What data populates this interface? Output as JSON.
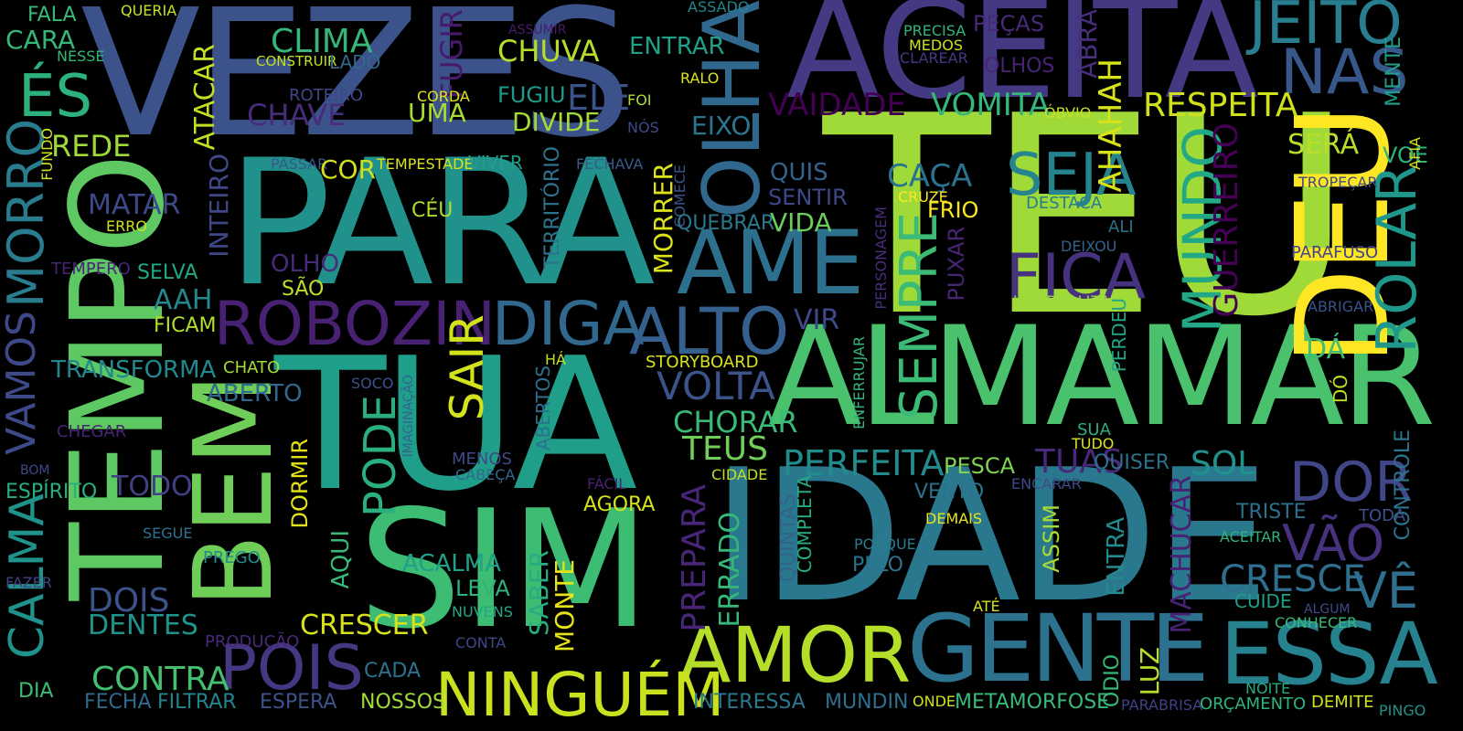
{
  "colors": {
    "background": "#000000"
  },
  "words": [
    {
      "id": "teu",
      "text": "TEU",
      "color": "#a0da39"
    },
    {
      "id": "vezes",
      "text": "VEZES",
      "color": "#3b528b"
    },
    {
      "id": "aceita",
      "text": "ACEITA",
      "color": "#443a83"
    },
    {
      "id": "para",
      "text": "PARA",
      "color": "#21918c"
    },
    {
      "id": "tempo",
      "text": "TEMPO",
      "color": "#5ec962"
    },
    {
      "id": "tua",
      "text": "TUA",
      "color": "#1f9e89"
    },
    {
      "id": "sim",
      "text": "SIM",
      "color": "#3dbc74"
    },
    {
      "id": "idade",
      "text": "IDADE",
      "color": "#2a788e"
    },
    {
      "id": "almamar",
      "text": "ALMAMAR",
      "color": "#4ac16d"
    },
    {
      "id": "deu",
      "text": "DEU",
      "color": "#fde725"
    },
    {
      "id": "bem",
      "text": "BEM",
      "color": "#6ece58"
    },
    {
      "id": "gente",
      "text": "GENTE",
      "color": "#2c728e"
    },
    {
      "id": "essa",
      "text": "ESSA",
      "color": "#26828e"
    },
    {
      "id": "amor",
      "text": "AMOR",
      "color": "#b5de2b"
    },
    {
      "id": "olha",
      "text": "OLHA",
      "color": "#31688e"
    },
    {
      "id": "ame",
      "text": "AME",
      "color": "#2d708e"
    },
    {
      "id": "robozin",
      "text": "ROBOZIN",
      "color": "#482173"
    },
    {
      "id": "diga",
      "text": "DIGA",
      "color": "#31688e"
    },
    {
      "id": "alto",
      "text": "ALTO",
      "color": "#355f8d"
    },
    {
      "id": "ninguem",
      "text": "NINGUÉM",
      "color": "#cae11f"
    },
    {
      "id": "jeito",
      "text": "JEITO",
      "color": "#287d8e"
    },
    {
      "id": "nas",
      "text": "NAS",
      "color": "#38588c"
    },
    {
      "id": "seja",
      "text": "SEJA",
      "color": "#25848e"
    },
    {
      "id": "fica",
      "text": "FICA",
      "color": "#46327e"
    },
    {
      "id": "sempre",
      "text": "SEMPRE",
      "color": "#3bbb75"
    },
    {
      "id": "mundo",
      "text": "MUNDO",
      "color": "#22a884"
    },
    {
      "id": "rolar",
      "text": "ROLAR",
      "color": "#1f988b"
    },
    {
      "id": "pois",
      "text": "POIS",
      "color": "#453781"
    },
    {
      "id": "calma",
      "text": "CALMA",
      "color": "#20928c"
    },
    {
      "id": "vamos",
      "text": "VAMOS",
      "color": "#3e4989"
    },
    {
      "id": "morro",
      "text": "MORRO",
      "color": "#297b8e"
    },
    {
      "id": "es",
      "text": "ÉS",
      "color": "#2db27d"
    },
    {
      "id": "pode",
      "text": "PODE",
      "color": "#2ab07f"
    },
    {
      "id": "sair",
      "text": "SAIR",
      "color": "#d2e21b"
    },
    {
      "id": "dor",
      "text": "DOR",
      "color": "#404688"
    },
    {
      "id": "vao",
      "text": "VÃO",
      "color": "#46327e"
    },
    {
      "id": "ve",
      "text": "VÊ",
      "color": "#2e6e8e"
    },
    {
      "id": "cresce",
      "text": "CRESCE",
      "color": "#2e6e8e"
    },
    {
      "id": "perfeita",
      "text": "PERFEITA",
      "color": "#228c8d"
    },
    {
      "id": "tuas",
      "text": "TUAS",
      "color": "#482878"
    },
    {
      "id": "sol",
      "text": "SOL",
      "color": "#20928c"
    },
    {
      "id": "volta",
      "text": "VOLTA",
      "color": "#3b528b"
    },
    {
      "id": "chorar",
      "text": "CHORAR",
      "color": "#3aba76"
    },
    {
      "id": "teus",
      "text": "TEUS",
      "color": "#6ece58"
    },
    {
      "id": "respeita",
      "text": "RESPEITA",
      "color": "#d0e11c"
    },
    {
      "id": "ahahah",
      "text": "AHAHAH",
      "color": "#d8e219"
    },
    {
      "id": "guerreiro",
      "text": "GUERREIRO",
      "color": "#440154"
    },
    {
      "id": "sera",
      "text": "SERÁ",
      "color": "#b8de29"
    },
    {
      "id": "clima",
      "text": "CLIMA",
      "color": "#35b779"
    },
    {
      "id": "chuva",
      "text": "CHUVA",
      "color": "#b5de2b"
    },
    {
      "id": "entrar",
      "text": "ENTRAR",
      "color": "#1fa088"
    },
    {
      "id": "ele",
      "text": "ELE",
      "color": "#3b528b"
    },
    {
      "id": "vomita",
      "text": "VOMITA",
      "color": "#35b779"
    },
    {
      "id": "vaidade",
      "text": "VAIDADE",
      "color": "#440154"
    },
    {
      "id": "chave",
      "text": "CHAVE",
      "color": "#472c7a"
    },
    {
      "id": "uma",
      "text": "UMA",
      "color": "#a8db34"
    },
    {
      "id": "divide",
      "text": "DIVIDE",
      "color": "#a2da37"
    },
    {
      "id": "fugiu",
      "text": "FUGIU",
      "color": "#1f9a8a"
    },
    {
      "id": "eixo",
      "text": "EIXO",
      "color": "#2a768e"
    },
    {
      "id": "fugir",
      "text": "FUGIR",
      "color": "#481a6c"
    },
    {
      "id": "atacar",
      "text": "ATACAR",
      "color": "#c2df23"
    },
    {
      "id": "rede",
      "text": "REDE",
      "color": "#9fda3a"
    },
    {
      "id": "cara",
      "text": "CARA",
      "color": "#35b779"
    },
    {
      "id": "fala",
      "text": "FALA",
      "color": "#38b977"
    },
    {
      "id": "queria",
      "text": "QUERIA",
      "color": "#c5e021"
    },
    {
      "id": "nesse",
      "text": "NESSE",
      "color": "#34b679"
    },
    {
      "id": "construir",
      "text": "CONSTRUIR",
      "color": "#c5e021"
    },
    {
      "id": "lado",
      "text": "LADO",
      "color": "#31688e"
    },
    {
      "id": "roteiro",
      "text": "ROTEIRO",
      "color": "#3f4788"
    },
    {
      "id": "corda",
      "text": "CORDA",
      "color": "#e2e418"
    },
    {
      "id": "assumir",
      "text": "ASSUMIR",
      "color": "#481b6d"
    },
    {
      "id": "assado",
      "text": "ASSADO",
      "color": "#25858e"
    },
    {
      "id": "precisa",
      "text": "PRECISA",
      "color": "#30b57e"
    },
    {
      "id": "medos",
      "text": "MEDOS",
      "color": "#cde11d"
    },
    {
      "id": "clarear",
      "text": "CLAREAR",
      "color": "#443983"
    },
    {
      "id": "pecas",
      "text": "PEÇAS",
      "color": "#482979"
    },
    {
      "id": "olhos",
      "text": "OLHOS",
      "color": "#482475"
    },
    {
      "id": "abra",
      "text": "ABRA",
      "color": "#472f7d"
    },
    {
      "id": "foi",
      "text": "FOI",
      "color": "#addc30"
    },
    {
      "id": "nos",
      "text": "NÓS",
      "color": "#3e4989"
    },
    {
      "id": "ralo",
      "text": "RALO",
      "color": "#dde318"
    },
    {
      "id": "obvio",
      "text": "ÓBVIO",
      "color": "#c8e020"
    },
    {
      "id": "mente",
      "text": "MENTE",
      "color": "#1f9e89"
    },
    {
      "id": "controle",
      "text": "CONTROLE",
      "color": "#2c738e"
    },
    {
      "id": "voe",
      "text": "VOE",
      "color": "#2eb37c"
    },
    {
      "id": "afia",
      "text": "AFIA",
      "color": "#d8e219"
    },
    {
      "id": "tropecar",
      "text": "TROPEÇAR",
      "color": "#3e4989"
    },
    {
      "id": "matar",
      "text": "MATAR",
      "color": "#3e4989"
    },
    {
      "id": "erro",
      "text": "ERRO",
      "color": "#d2e21b"
    },
    {
      "id": "fundo",
      "text": "FUNDO",
      "color": "#d2e21b"
    },
    {
      "id": "passar",
      "text": "PASSAR",
      "color": "#39568c"
    },
    {
      "id": "tempestade",
      "text": "TEMPESTADE",
      "color": "#dde318"
    },
    {
      "id": "viver",
      "text": "VIVER",
      "color": "#1f9e89"
    },
    {
      "id": "fechava",
      "text": "FECHAVA",
      "color": "#365c8d"
    },
    {
      "id": "cor",
      "text": "COR",
      "color": "#d0e11c"
    },
    {
      "id": "ceu",
      "text": "CÉU",
      "color": "#addc30"
    },
    {
      "id": "inteiro",
      "text": "INTEIRO",
      "color": "#3f4788"
    },
    {
      "id": "territorio",
      "text": "TERRITÓRIO",
      "color": "#2c738e"
    },
    {
      "id": "comece",
      "text": "COMECE",
      "color": "#3b528b"
    },
    {
      "id": "morrer",
      "text": "MORRER",
      "color": "#dde318"
    },
    {
      "id": "quebrar",
      "text": "QUEBRAR",
      "color": "#2a788e"
    },
    {
      "id": "quis",
      "text": "QUIS",
      "color": "#33638d"
    },
    {
      "id": "sentir",
      "text": "SENTIR",
      "color": "#3e4989"
    },
    {
      "id": "vida",
      "text": "VIDA",
      "color": "#6ccd5a"
    },
    {
      "id": "caca",
      "text": "CAÇA",
      "color": "#2c728e"
    },
    {
      "id": "cruze",
      "text": "CRUZE",
      "color": "#fde725"
    },
    {
      "id": "frio",
      "text": "FRIO",
      "color": "#fde725"
    },
    {
      "id": "destaca",
      "text": "DESTACA",
      "color": "#287c8e"
    },
    {
      "id": "ali",
      "text": "ALI",
      "color": "#2c718e"
    },
    {
      "id": "deixou",
      "text": "DEIXOU",
      "color": "#33638d"
    },
    {
      "id": "personagem",
      "text": "PERSONAGEM",
      "color": "#472d7b"
    },
    {
      "id": "puxar",
      "text": "PUXAR",
      "color": "#482475"
    },
    {
      "id": "parafuso",
      "text": "PARAFUSO",
      "color": "#414487"
    },
    {
      "id": "abrigar",
      "text": "ABRIGAR",
      "color": "#3b528b"
    },
    {
      "id": "internaliza",
      "text": "INTERNALIZA",
      "color": "#9bd93c"
    },
    {
      "id": "perdeu",
      "text": "PERDEU",
      "color": "#22a785"
    },
    {
      "id": "tempero",
      "text": "TEMPERO",
      "color": "#482475"
    },
    {
      "id": "selva",
      "text": "SELVA",
      "color": "#22a884"
    },
    {
      "id": "olho",
      "text": "OLHO",
      "color": "#472a7a"
    },
    {
      "id": "aah",
      "text": "AAH",
      "color": "#24878e"
    },
    {
      "id": "sao",
      "text": "SÃO",
      "color": "#c0df25"
    },
    {
      "id": "ficam",
      "text": "FICAM",
      "color": "#b2dd2d"
    },
    {
      "id": "transforma",
      "text": "TRANSFORMA",
      "color": "#23888e"
    },
    {
      "id": "chato",
      "text": "CHATO",
      "color": "#a5db36"
    },
    {
      "id": "vir",
      "text": "VIR",
      "color": "#3e4989"
    },
    {
      "id": "storyboard",
      "text": "STORYBOARD",
      "color": "#d8e219"
    },
    {
      "id": "ha",
      "text": "HÁ",
      "color": "#c0df25"
    },
    {
      "id": "aberto",
      "text": "ABERTO",
      "color": "#31688e"
    },
    {
      "id": "soco",
      "text": "SOCO",
      "color": "#3b528b"
    },
    {
      "id": "abertos",
      "text": "ABERTOS",
      "color": "#2d708e"
    },
    {
      "id": "imaginacao",
      "text": "IMAGINAÇÃO",
      "color": "#32648e"
    },
    {
      "id": "enferrujar",
      "text": "ENFERRUJAR",
      "color": "#32b67a"
    },
    {
      "id": "chegar",
      "text": "CHEGAR",
      "color": "#482475"
    },
    {
      "id": "bom",
      "text": "BOM",
      "color": "#3e4989"
    },
    {
      "id": "espirito",
      "text": "ESPÍRITO",
      "color": "#29af7f"
    },
    {
      "id": "todo",
      "text": "TODO",
      "color": "#433e85"
    },
    {
      "id": "dormir",
      "text": "DORMIR",
      "color": "#e2e418"
    },
    {
      "id": "menos",
      "text": "MENOS",
      "color": "#3e4989"
    },
    {
      "id": "cabeca",
      "text": "CABEÇA",
      "color": "#31688e"
    },
    {
      "id": "cidade",
      "text": "CIDADE",
      "color": "#c2df23"
    },
    {
      "id": "facil",
      "text": "FÁCIL",
      "color": "#482173"
    },
    {
      "id": "agora",
      "text": "AGORA",
      "color": "#d5e21a"
    },
    {
      "id": "segue",
      "text": "SEGUE",
      "color": "#2c728e"
    },
    {
      "id": "prego",
      "text": "PREGO",
      "color": "#238a8d"
    },
    {
      "id": "fazer",
      "text": "FAZER",
      "color": "#414487"
    },
    {
      "id": "dois",
      "text": "DOIS",
      "color": "#3b528b"
    },
    {
      "id": "dentes",
      "text": "DENTES",
      "color": "#20928c"
    },
    {
      "id": "aqui",
      "text": "AQUI",
      "color": "#38b977"
    },
    {
      "id": "acalma",
      "text": "ACALMA",
      "color": "#1fa088"
    },
    {
      "id": "leva",
      "text": "LEVA",
      "color": "#2eb37c"
    },
    {
      "id": "nuvens",
      "text": "NUVENS",
      "color": "#22a884"
    },
    {
      "id": "crescer",
      "text": "CRESCER",
      "color": "#d8e219"
    },
    {
      "id": "producao",
      "text": "PRODUÇÃO",
      "color": "#482878"
    },
    {
      "id": "conta",
      "text": "CONTA",
      "color": "#3f4788"
    },
    {
      "id": "cada",
      "text": "CADA",
      "color": "#2c728e"
    },
    {
      "id": "contra",
      "text": "CONTRA",
      "color": "#44bf70"
    },
    {
      "id": "dia",
      "text": "DIA",
      "color": "#3dbc74"
    },
    {
      "id": "fecha",
      "text": "FECHA",
      "color": "#31688e"
    },
    {
      "id": "filtrar",
      "text": "FILTRAR",
      "color": "#25838e"
    },
    {
      "id": "espera",
      "text": "ESPERA",
      "color": "#3b528b"
    },
    {
      "id": "nossos",
      "text": "NOSSOS",
      "color": "#a0da39"
    },
    {
      "id": "saber",
      "text": "SABER",
      "color": "#27ad81"
    },
    {
      "id": "monte",
      "text": "MONTE",
      "color": "#e5e419"
    },
    {
      "id": "prepara",
      "text": "PREPARA",
      "color": "#482576"
    },
    {
      "id": "errado",
      "text": "ERRADO",
      "color": "#35b779"
    },
    {
      "id": "quintas",
      "text": "QUINTAS",
      "color": "#33638d"
    },
    {
      "id": "completa",
      "text": "COMPLETA",
      "color": "#25ac82"
    },
    {
      "id": "pesca",
      "text": "PESCA",
      "color": "#7fd34e"
    },
    {
      "id": "vento",
      "text": "VENTO",
      "color": "#2c728e"
    },
    {
      "id": "encarar",
      "text": "ENCARAR",
      "color": "#3e4989"
    },
    {
      "id": "quiser",
      "text": "QUISER",
      "color": "#2c718e"
    },
    {
      "id": "sua",
      "text": "SUA",
      "color": "#29af7f"
    },
    {
      "id": "tudo",
      "text": "TUDO",
      "color": "#dde318"
    },
    {
      "id": "assim",
      "text": "ASSIM",
      "color": "#a8db34"
    },
    {
      "id": "entra",
      "text": "ENTRA",
      "color": "#238a8d"
    },
    {
      "id": "machucar",
      "text": "MACHUCAR",
      "color": "#482173"
    },
    {
      "id": "demais",
      "text": "DEMAIS",
      "color": "#e7e419"
    },
    {
      "id": "porque",
      "text": "PORQUE",
      "color": "#287c8e"
    },
    {
      "id": "pelo",
      "text": "PELO",
      "color": "#2c728e"
    },
    {
      "id": "ate",
      "text": "ATÉ",
      "color": "#d5e21a"
    },
    {
      "id": "luz",
      "text": "LUZ",
      "color": "#b5de2b"
    },
    {
      "id": "odio",
      "text": "ÓDIO",
      "color": "#35b779"
    },
    {
      "id": "triste",
      "text": "TRISTE",
      "color": "#2d708e"
    },
    {
      "id": "aceitar",
      "text": "ACEITAR",
      "color": "#2eb37c"
    },
    {
      "id": "cuide",
      "text": "CUIDE",
      "color": "#1f9e89"
    },
    {
      "id": "algum",
      "text": "ALGUM",
      "color": "#3e4989"
    },
    {
      "id": "conhecer",
      "text": "CONHECER",
      "color": "#39b977"
    },
    {
      "id": "toda",
      "text": "TODA",
      "color": "#3b528b"
    },
    {
      "id": "do",
      "text": "DÓ",
      "color": "#c2df23"
    },
    {
      "id": "da",
      "text": "DÁ",
      "color": "#40bd72"
    },
    {
      "id": "noite",
      "text": "NOITE",
      "color": "#25ab82"
    },
    {
      "id": "interessa",
      "text": "INTERESSA",
      "color": "#2a788e"
    },
    {
      "id": "mundin",
      "text": "MUNDIN",
      "color": "#2e6e8e"
    },
    {
      "id": "onde",
      "text": "ONDE",
      "color": "#d0e11c"
    },
    {
      "id": "metamorfose",
      "text": "METAMORFOSE",
      "color": "#38b977"
    },
    {
      "id": "parabrisa",
      "text": "PARABRISA",
      "color": "#424086"
    },
    {
      "id": "orcamento",
      "text": "ORÇAMENTO",
      "color": "#2eb37c"
    },
    {
      "id": "demite",
      "text": "DEMITE",
      "color": "#d2e21b"
    },
    {
      "id": "pingo",
      "text": "PINGO",
      "color": "#20928c"
    }
  ]
}
